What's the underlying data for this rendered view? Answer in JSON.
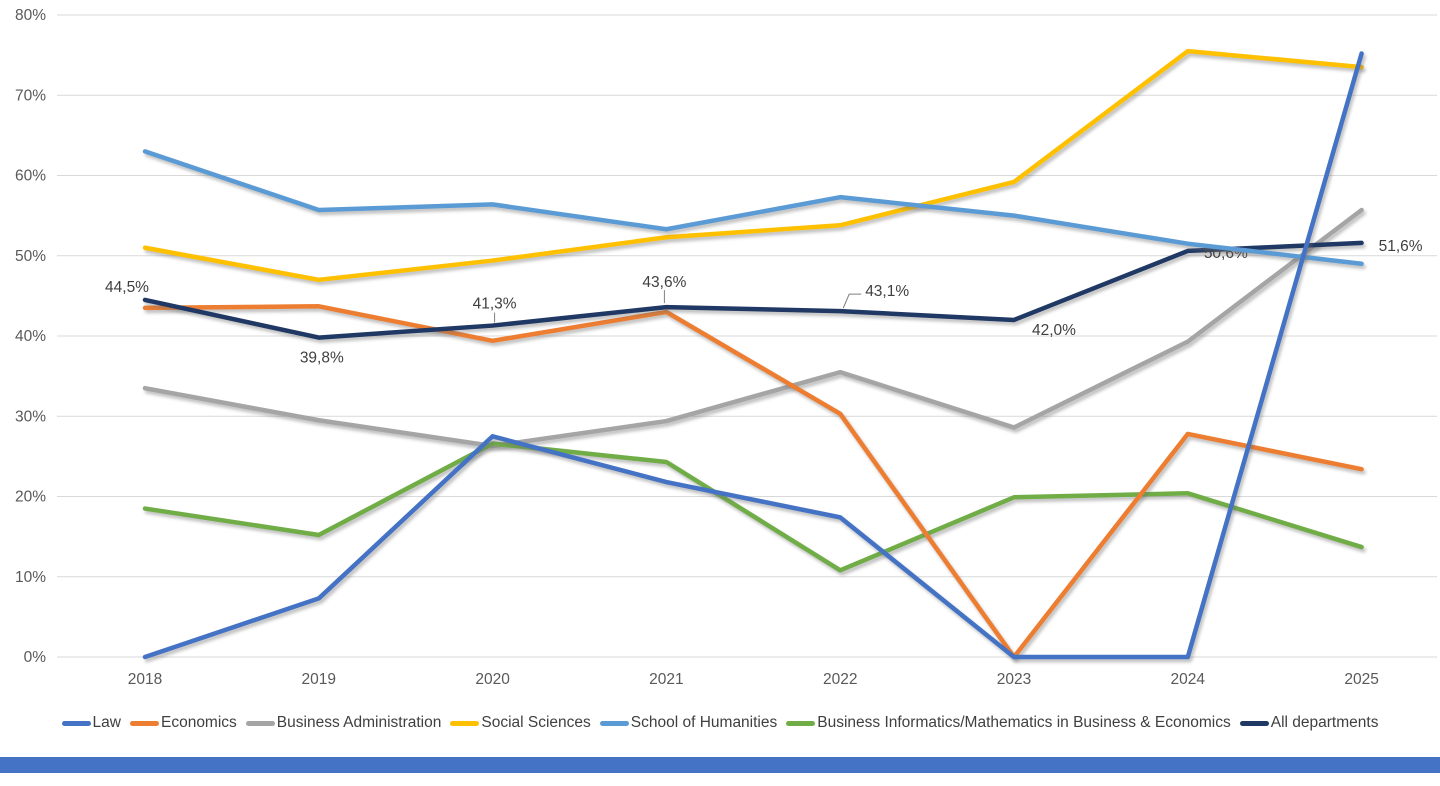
{
  "chart_data": {
    "type": "line",
    "title": "",
    "categories": [
      "2018",
      "2019",
      "2020",
      "2021",
      "2022",
      "2023",
      "2024",
      "2025"
    ],
    "series": [
      {
        "name": "Law",
        "color": "#4472C4",
        "values": [
          0.0,
          7.3,
          27.5,
          21.8,
          17.4,
          0.0,
          0.0,
          75.2
        ]
      },
      {
        "name": "Economics",
        "color": "#ED7D31",
        "values": [
          43.5,
          43.7,
          39.4,
          43.0,
          30.3,
          0.0,
          27.8,
          23.4
        ]
      },
      {
        "name": "Business Administration",
        "color": "#A5A5A5",
        "values": [
          33.5,
          29.5,
          26.3,
          29.4,
          35.5,
          28.6,
          39.3,
          55.7
        ]
      },
      {
        "name": "Social Sciences",
        "color": "#FFC000",
        "values": [
          51.0,
          47.0,
          49.4,
          52.3,
          53.8,
          59.2,
          75.5,
          73.5
        ]
      },
      {
        "name": "School of Humanities",
        "color": "#5B9BD5",
        "values": [
          63.0,
          55.7,
          56.4,
          53.3,
          57.3,
          55.0,
          51.5,
          49.0
        ]
      },
      {
        "name": "Business Informatics/Mathematics in Business & Economics",
        "color": "#70AD47",
        "values": [
          18.5,
          15.2,
          26.6,
          24.3,
          10.8,
          19.9,
          20.4,
          13.7
        ]
      },
      {
        "name": "All departments",
        "color": "#1F3864",
        "values": [
          44.5,
          39.8,
          41.3,
          43.6,
          43.1,
          42.0,
          50.6,
          51.6
        ],
        "point_labels": [
          "44,5%",
          "39,8%",
          "41,3%",
          "43,6%",
          "43,1%",
          "42,0%",
          "50,6%",
          "51,6%"
        ]
      }
    ],
    "ylim": [
      0,
      80
    ],
    "ytick_step": 10,
    "ytick_labels": [
      "0%",
      "10%",
      "20%",
      "30%",
      "40%",
      "50%",
      "60%",
      "70%",
      "80%"
    ],
    "xlabel": "",
    "ylabel": "",
    "grid": "horizontal",
    "legend_position": "bottom"
  },
  "footer": {
    "bar_color": "#4472C4"
  }
}
